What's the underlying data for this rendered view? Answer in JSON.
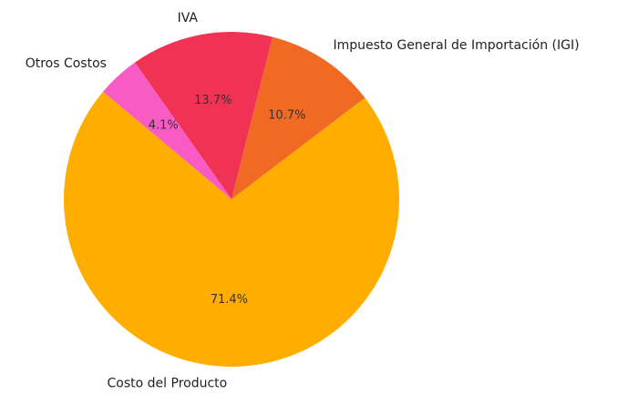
{
  "chart_data": {
    "type": "pie",
    "categories": [
      "Costo del Producto",
      "Impuesto General de Importación (IGI)",
      "IVA",
      "Otros Costos"
    ],
    "values": [
      71.4,
      10.7,
      13.7,
      4.1
    ],
    "value_labels": [
      "71.4%",
      "10.7%",
      "13.7%",
      "4.1%"
    ],
    "colors": [
      "#ffae00",
      "#f06a24",
      "#f03355",
      "#f95bc4"
    ],
    "startangle": 140
  }
}
